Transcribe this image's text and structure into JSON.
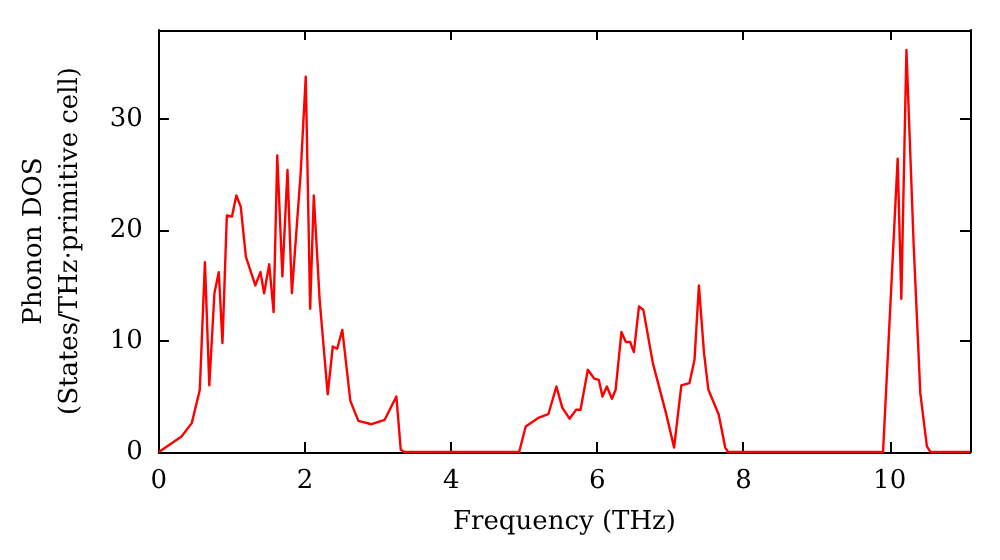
{
  "chart_data": {
    "type": "line",
    "xlabel": "Frequency (THz)",
    "ylabel": "Phonon DOS\n(States/THz·primitive cell)",
    "xlim": [
      0,
      11.1
    ],
    "ylim": [
      0,
      38
    ],
    "xticks": [
      0,
      2,
      4,
      6,
      8,
      10
    ],
    "yticks": [
      0,
      10,
      20,
      30
    ],
    "grid": false,
    "marker": "none",
    "line_style": "solid",
    "series": [
      {
        "color": "#ff0000",
        "x": [
          0,
          0.31,
          0.45,
          0.56,
          0.63,
          0.69,
          0.76,
          0.82,
          0.87,
          0.93,
          1.0,
          1.06,
          1.12,
          1.19,
          1.32,
          1.39,
          1.44,
          1.51,
          1.57,
          1.62,
          1.69,
          1.76,
          1.82,
          1.94,
          2.01,
          2.07,
          2.12,
          2.2,
          2.31,
          2.38,
          2.44,
          2.51,
          2.62,
          2.73,
          2.91,
          3.09,
          3.25,
          3.31,
          3.36,
          4.93,
          5.02,
          5.2,
          5.33,
          5.44,
          5.52,
          5.62,
          5.71,
          5.77,
          5.87,
          5.96,
          6.02,
          6.07,
          6.13,
          6.2,
          6.25,
          6.33,
          6.39,
          6.45,
          6.5,
          6.57,
          6.63,
          6.76,
          6.94,
          7.05,
          7.15,
          7.26,
          7.33,
          7.39,
          7.46,
          7.52,
          7.66,
          7.75,
          7.79,
          9.91,
          10.11,
          10.16,
          10.23,
          10.33,
          10.42,
          10.51,
          10.56,
          11.1
        ],
        "values": [
          0,
          1.4,
          2.6,
          5.6,
          17.1,
          6.0,
          14.3,
          16.2,
          9.8,
          21.3,
          21.2,
          23.1,
          22.1,
          17.6,
          15.0,
          16.2,
          14.3,
          16.9,
          12.6,
          26.7,
          15.8,
          25.4,
          14.3,
          25.1,
          33.8,
          12.9,
          23.1,
          13.7,
          5.2,
          9.5,
          9.3,
          11.0,
          4.6,
          2.8,
          2.5,
          2.9,
          5.0,
          0.2,
          0,
          0,
          2.3,
          3.1,
          3.4,
          5.9,
          4.0,
          3.0,
          3.8,
          3.8,
          7.4,
          6.6,
          6.5,
          5.0,
          5.9,
          4.8,
          5.6,
          10.8,
          9.9,
          9.9,
          9.0,
          13.1,
          12.8,
          8.0,
          3.5,
          0.4,
          6.0,
          6.2,
          8.3,
          15.0,
          8.9,
          5.6,
          3.4,
          0.4,
          0,
          0,
          26.4,
          13.8,
          36.2,
          18.5,
          5.3,
          0.5,
          0,
          0
        ]
      }
    ]
  }
}
